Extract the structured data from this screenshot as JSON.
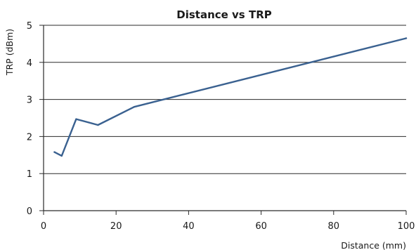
{
  "chart_data": {
    "type": "line",
    "title": "Distance vs TRP",
    "xlabel": "Distance (mm)",
    "ylabel": "TRP (dBm)",
    "xlim": [
      0,
      100
    ],
    "ylim": [
      0,
      5
    ],
    "xticks": [
      0,
      20,
      40,
      60,
      80,
      100
    ],
    "yticks": [
      0,
      1,
      2,
      3,
      4,
      5
    ],
    "grid": "horizontal",
    "series": [
      {
        "color": "#3a6190",
        "x": [
          3,
          5,
          9,
          15,
          25,
          100
        ],
        "y": [
          1.58,
          1.48,
          2.47,
          2.31,
          2.8,
          4.65
        ]
      }
    ]
  }
}
